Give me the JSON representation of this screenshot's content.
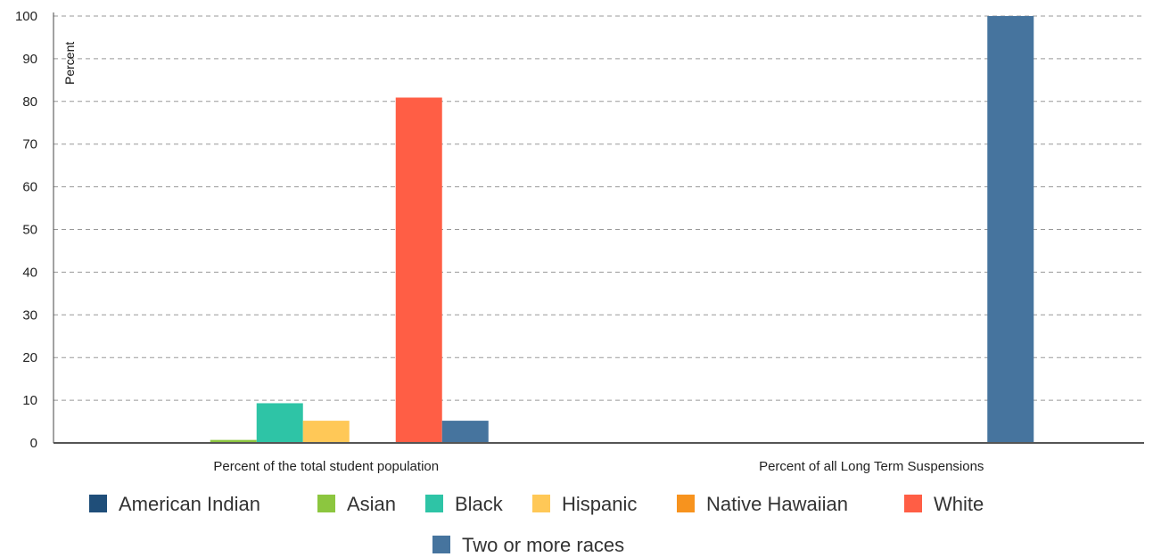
{
  "chart_data": {
    "type": "bar",
    "ylabel": "Percent",
    "ylim": [
      0,
      100
    ],
    "yticks": [
      0,
      10,
      20,
      30,
      40,
      50,
      60,
      70,
      80,
      90,
      100
    ],
    "grid": true,
    "legend_position": "bottom",
    "categories": [
      "Percent of the total student population",
      "Percent of all Long Term Suspensions"
    ],
    "series": [
      {
        "name": "American Indian",
        "color": "#1f4e79",
        "values": [
          0,
          0
        ]
      },
      {
        "name": "Asian",
        "color": "#8cc63f",
        "values": [
          0.7,
          0
        ]
      },
      {
        "name": "Black",
        "color": "#2ec4a6",
        "values": [
          9.3,
          0
        ]
      },
      {
        "name": "Hispanic",
        "color": "#ffc857",
        "values": [
          5.2,
          0
        ]
      },
      {
        "name": "Native Hawaiian",
        "color": "#f7931e",
        "values": [
          0,
          0
        ]
      },
      {
        "name": "White",
        "color": "#ff5e45",
        "values": [
          80.9,
          0
        ]
      },
      {
        "name": "Two or more races",
        "color": "#46749e",
        "values": [
          5.2,
          100
        ]
      }
    ]
  }
}
